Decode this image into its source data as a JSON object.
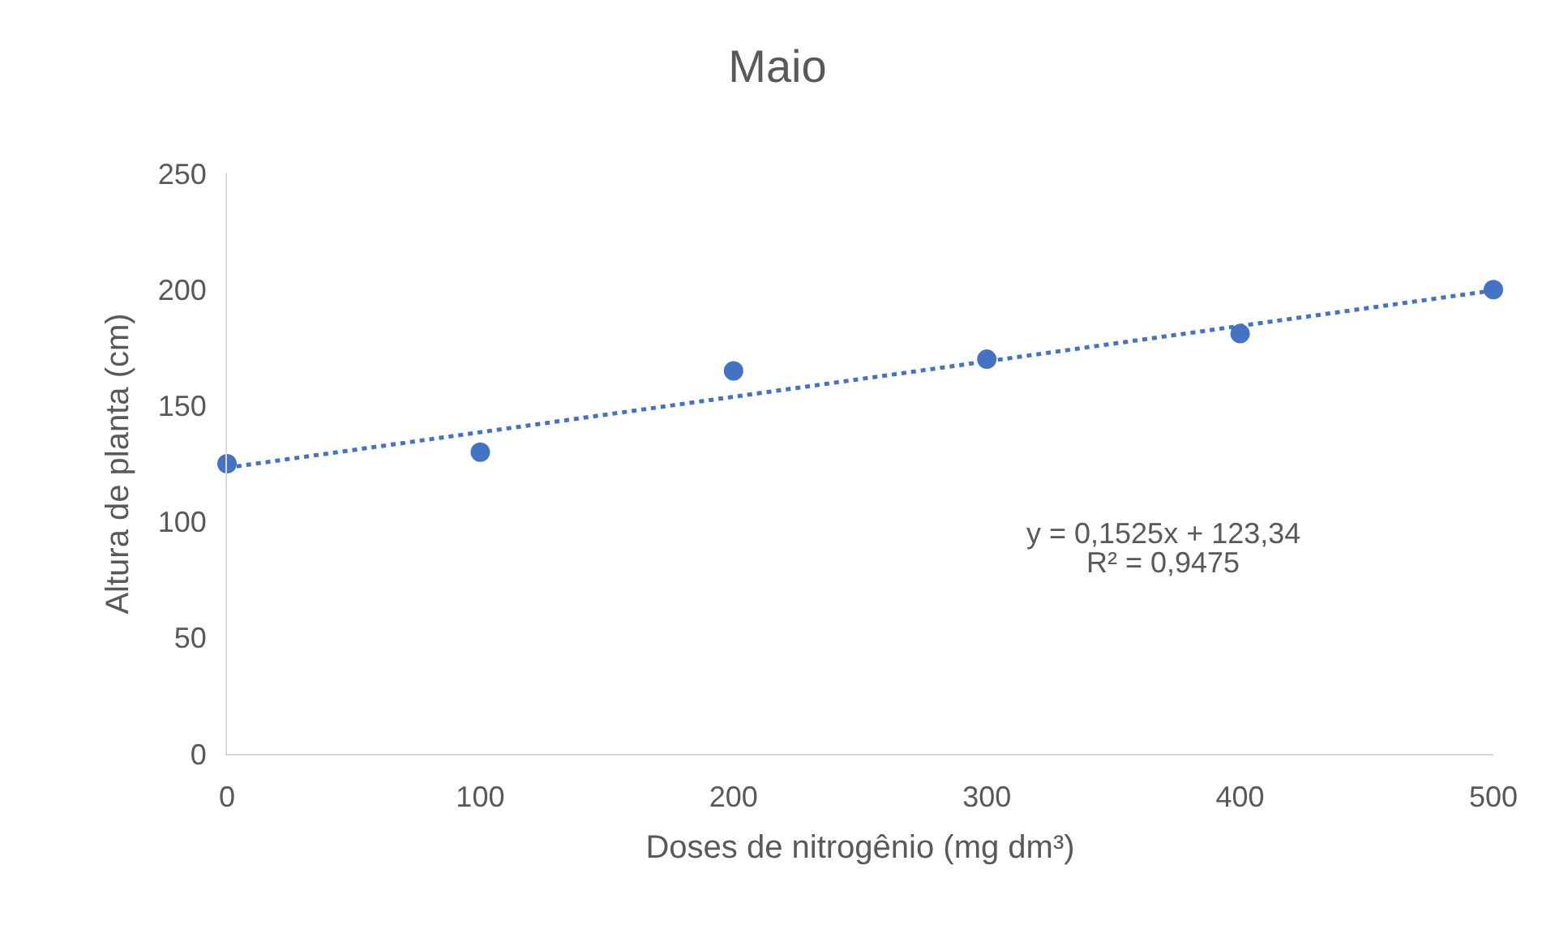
{
  "chart_data": {
    "type": "scatter",
    "title": "Maio",
    "xlabel": "Doses de nitrogênio (mg dm³)",
    "ylabel": "Altura de planta (cm)",
    "x": [
      0,
      100,
      200,
      300,
      400,
      500
    ],
    "series": [
      {
        "color": "#4472c4",
        "marker": "circle",
        "values": [
          125,
          130,
          165,
          170,
          181,
          200
        ]
      },
      {
        "type": "line",
        "color": "#4472c4",
        "line_style": "dotted",
        "x": [
          0,
          500
        ],
        "values": [
          123.3,
          199.6
        ]
      }
    ],
    "xlim": [
      0,
      500
    ],
    "xticks": [
      0,
      100,
      200,
      300,
      400,
      500
    ],
    "ylim": [
      0,
      250
    ],
    "yticks": [
      0,
      50,
      100,
      150,
      200,
      250
    ],
    "grid": false,
    "annotations": [
      "y = 0,1525x + 123,34",
      "R² = 0,9475"
    ]
  }
}
